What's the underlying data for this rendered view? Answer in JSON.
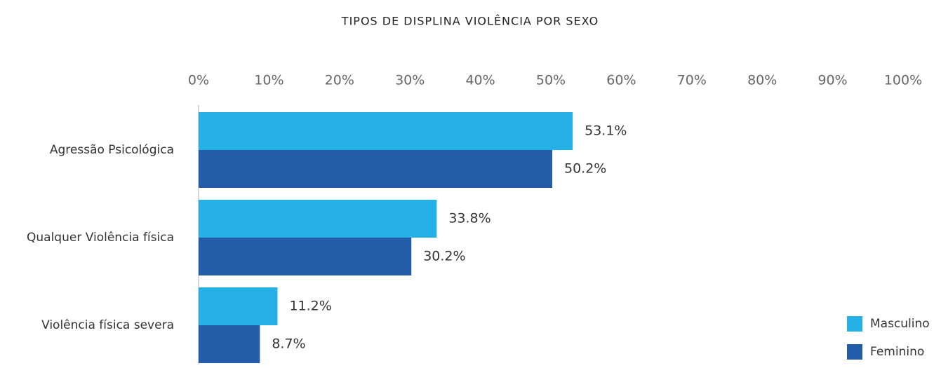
{
  "chart_data": {
    "type": "hbar",
    "title": "TIPOS DE DISPLINA VIOLÊNCIA POR SEXO",
    "categories": [
      "Agressão Psicológica",
      "Qualquer Violência física",
      "Violência física severa"
    ],
    "series": [
      {
        "name": "Masculino",
        "color": "#25b0e6",
        "values": [
          53.1,
          33.8,
          11.2
        ],
        "value_labels": [
          "53.1%",
          "33.8%",
          "11.2%"
        ]
      },
      {
        "name": "Feminino",
        "color": "#235ca8",
        "values": [
          50.2,
          30.2,
          8.7
        ],
        "value_labels": [
          "50.2%",
          "30.2%",
          "8.7%"
        ]
      }
    ],
    "xlim": [
      0,
      100
    ],
    "xticks": [
      {
        "value": 0,
        "label": "0%"
      },
      {
        "value": 10,
        "label": "10%"
      },
      {
        "value": 20,
        "label": "20%"
      },
      {
        "value": 30,
        "label": "30%"
      },
      {
        "value": 40,
        "label": "40%"
      },
      {
        "value": 50,
        "label": "50%"
      },
      {
        "value": 60,
        "label": "60%"
      },
      {
        "value": 70,
        "label": "70%"
      },
      {
        "value": 80,
        "label": "80%"
      },
      {
        "value": 90,
        "label": "90%"
      },
      {
        "value": 100,
        "label": "100%"
      }
    ],
    "grid": false,
    "legend": "bottom-right"
  }
}
